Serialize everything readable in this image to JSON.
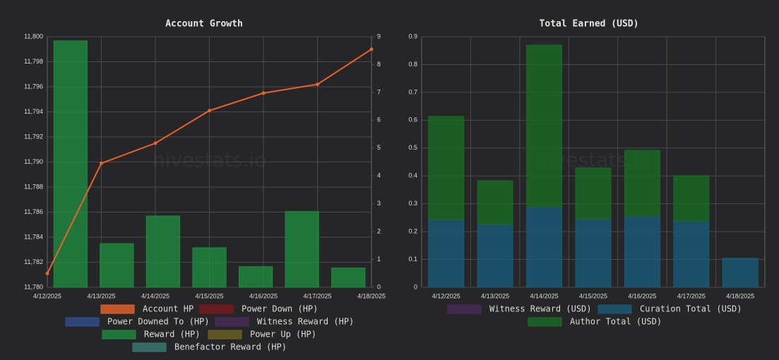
{
  "chart_data": [
    {
      "type": "bar",
      "title": "Account Growth",
      "watermark": "hivestats.io",
      "categories": [
        "4/12/2025",
        "4/13/2025",
        "4/14/2025",
        "4/15/2025",
        "4/16/2025",
        "4/17/2025",
        "4/18/2025"
      ],
      "ylim": [
        11780,
        11800
      ],
      "yticks": [
        {
          "value": 11780,
          "label": "11,780"
        },
        {
          "value": 11782,
          "label": "11,782"
        },
        {
          "value": 11784,
          "label": "11,784"
        },
        {
          "value": 11786,
          "label": "11,786"
        },
        {
          "value": 11788,
          "label": "11,788"
        },
        {
          "value": 11790,
          "label": "11,790"
        },
        {
          "value": 11792,
          "label": "11,792"
        },
        {
          "value": 11794,
          "label": "11,794"
        },
        {
          "value": 11796,
          "label": "11,796"
        },
        {
          "value": 11798,
          "label": "11,798"
        },
        {
          "value": 11800,
          "label": "11,800"
        }
      ],
      "y2lim": [
        0,
        9
      ],
      "y2ticks": [
        0,
        1,
        2,
        3,
        4,
        5,
        6,
        7,
        8,
        9
      ],
      "grid": true,
      "series": [
        {
          "name": "Account HP",
          "color": "#e8632b",
          "type": "line",
          "values": [
            11781.1,
            11789.9,
            11791.5,
            11794.1,
            11795.5,
            11796.2,
            11799.0
          ]
        },
        {
          "name": "Power Down (HP)",
          "color": "#7a1a1e"
        },
        {
          "name": "Power Downed To (HP)",
          "color": "#2e4f8f"
        },
        {
          "name": "Witness Reward (HP)",
          "color": "#4a2a5a"
        },
        {
          "name": "Reward (HP)",
          "color": "#1f8a3f",
          "type": "bar",
          "axis": "y2",
          "values": [
            8.85,
            1.57,
            2.56,
            1.42,
            0.74,
            2.72,
            0.69
          ]
        },
        {
          "name": "Power Up (HP)",
          "color": "#6b6222"
        },
        {
          "name": "Benefactor Reward (HP)",
          "color": "#3a7a70"
        }
      ]
    },
    {
      "type": "bar",
      "title": "Total Earned (USD)",
      "watermark": "hivestats.io",
      "stacked": true,
      "categories": [
        "4/12/2025",
        "4/13/2025",
        "4/14/2025",
        "4/15/2025",
        "4/16/2025",
        "4/17/2025",
        "4/18/2025"
      ],
      "ylim": [
        0,
        0.9
      ],
      "yticks": [
        0,
        0.1,
        0.2,
        0.3,
        0.4,
        0.5,
        0.6,
        0.7,
        0.8,
        0.9
      ],
      "grid": true,
      "series": [
        {
          "name": "Witness Reward (USD)",
          "color": "#4a2a5a"
        },
        {
          "name": "Curation Total (USD)",
          "color": "#1a5a78",
          "type": "bar",
          "values": [
            0.243,
            0.226,
            0.289,
            0.246,
            0.256,
            0.238,
            0.104
          ]
        },
        {
          "name": "Author Total (USD)",
          "color": "#1a6a24",
          "type": "bar",
          "values": [
            0.371,
            0.157,
            0.581,
            0.183,
            0.236,
            0.163,
            0
          ]
        }
      ]
    }
  ]
}
